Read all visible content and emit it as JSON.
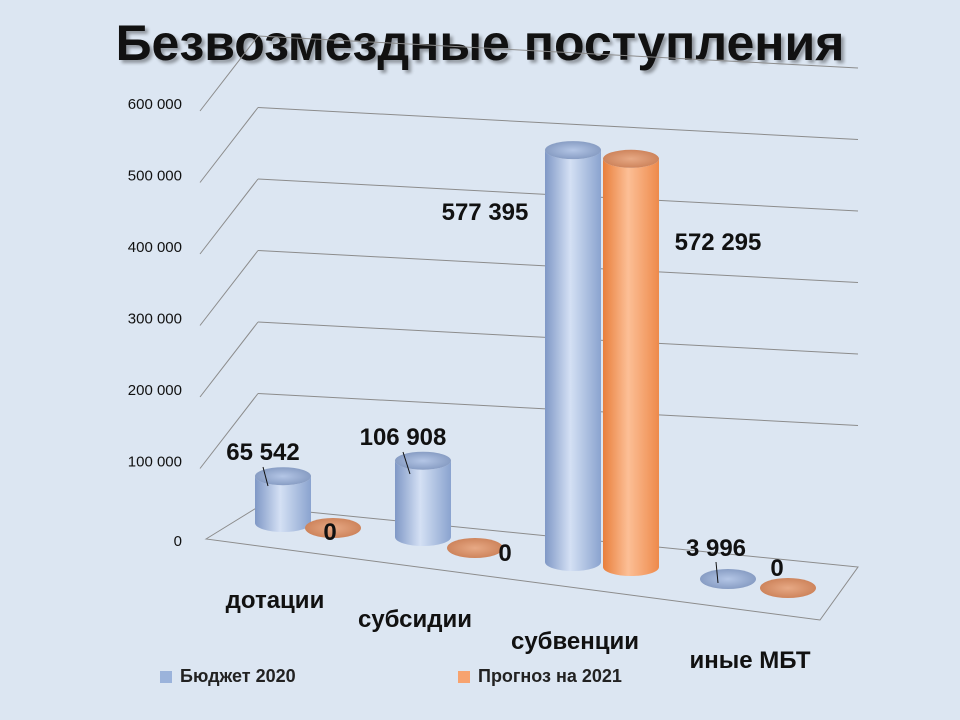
{
  "chart_data": {
    "type": "bar",
    "title": "Безвозмездные поступления",
    "categories": [
      "дотации",
      "субсидии",
      "субвенции",
      "иные МБТ"
    ],
    "series": [
      {
        "name": "Бюджет 2020",
        "values": [
          65542,
          106908,
          577395,
          3996
        ],
        "labels": [
          "65 542",
          "106 908",
          "577 395",
          "3 996"
        ],
        "color": "#b9cbea"
      },
      {
        "name": "Прогноз на 2021",
        "values": [
          0,
          0,
          572295,
          0
        ],
        "labels": [
          "0",
          "0",
          "572 295",
          "0"
        ],
        "color": "#f7a36f"
      }
    ],
    "yticks": [
      "0",
      "100 000",
      "200 000",
      "300 000",
      "400 000",
      "500 000",
      "600 000"
    ],
    "ylim": [
      0,
      600000
    ],
    "grid": true,
    "legend": "bottom"
  }
}
